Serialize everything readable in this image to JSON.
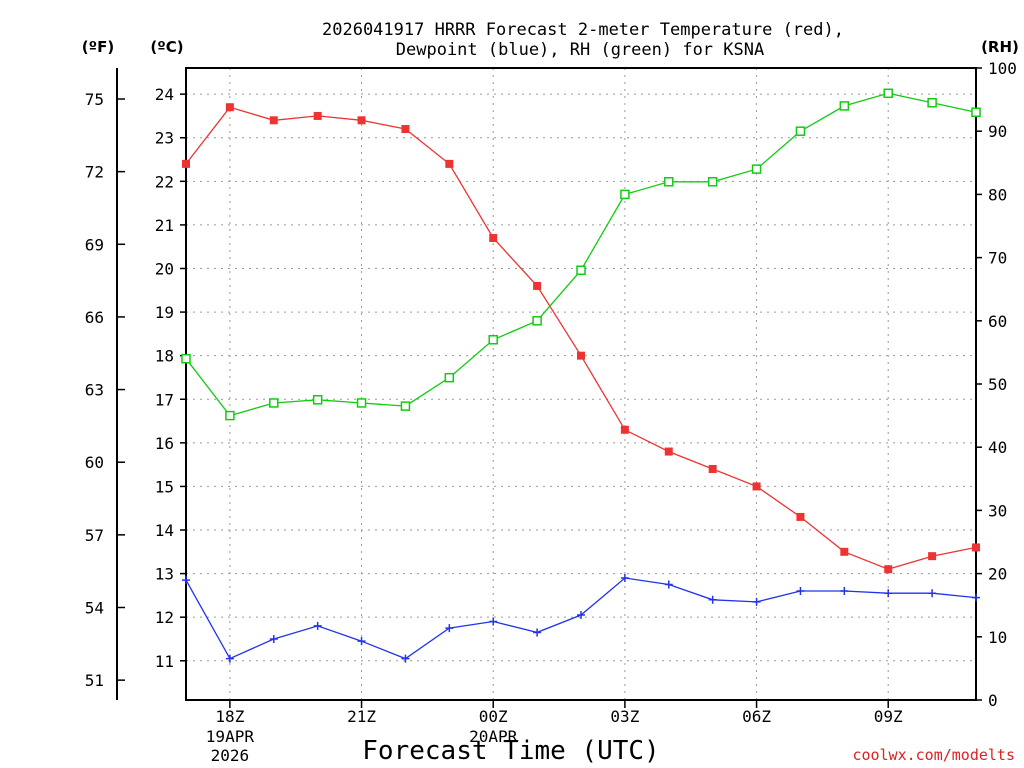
{
  "chart_data": {
    "type": "line",
    "title_line1": "2026041917 HRRR Forecast 2-meter Temperature (red),",
    "title_line2": "Dewpoint (blue), RH (green) for KSNA",
    "xlabel": "Forecast Time (UTC)",
    "credit": "coolwx.com/modelts",
    "units": {
      "fahrenheit": "(ºF)",
      "celsius": "(ºC)",
      "rh": "(RH)"
    },
    "x_hours": [
      17,
      18,
      19,
      20,
      21,
      22,
      23,
      24,
      25,
      26,
      27,
      28,
      29,
      30,
      31,
      32,
      33,
      34,
      35
    ],
    "xlim": [
      17,
      35
    ],
    "x_ticks": [
      {
        "hour": 18,
        "label": "18Z",
        "date": "19APR",
        "year": "2026"
      },
      {
        "hour": 21,
        "label": "21Z"
      },
      {
        "hour": 24,
        "label": "00Z",
        "date": "20APR"
      },
      {
        "hour": 27,
        "label": "03Z"
      },
      {
        "hour": 30,
        "label": "06Z"
      },
      {
        "hour": 33,
        "label": "09Z"
      }
    ],
    "celsius_axis": {
      "ylim": [
        10.1,
        24.6
      ],
      "ticks": [
        11,
        12,
        13,
        14,
        15,
        16,
        17,
        18,
        19,
        20,
        21,
        22,
        23,
        24
      ]
    },
    "fahrenheit_axis": {
      "ticks": [
        51,
        54,
        57,
        60,
        63,
        66,
        69,
        72,
        75
      ]
    },
    "rh_axis": {
      "ylim": [
        0,
        100
      ],
      "ticks": [
        0,
        10,
        20,
        30,
        40,
        50,
        60,
        70,
        80,
        90,
        100
      ]
    },
    "series": [
      {
        "name": "Temperature",
        "units": "°C",
        "color": "#ee3333",
        "marker": "filled-square",
        "values": [
          22.4,
          23.7,
          23.4,
          23.5,
          23.4,
          23.2,
          22.4,
          20.7,
          19.6,
          18.0,
          16.3,
          15.8,
          15.4,
          15.0,
          14.3,
          13.5,
          13.1,
          13.4,
          13.6
        ]
      },
      {
        "name": "Dewpoint",
        "units": "°C",
        "color": "#2233ee",
        "marker": "plus",
        "values": [
          12.85,
          11.05,
          11.5,
          11.8,
          11.45,
          11.05,
          11.75,
          11.9,
          11.65,
          12.05,
          12.9,
          12.75,
          12.4,
          12.35,
          12.6,
          12.6,
          12.55,
          12.55,
          12.45
        ]
      },
      {
        "name": "RH",
        "units": "%",
        "color": "#11cc11",
        "marker": "open-square",
        "values": [
          54,
          45,
          47,
          47.5,
          47,
          46.5,
          51,
          57,
          60,
          68,
          80,
          82,
          82,
          84,
          90,
          94,
          96,
          94.5,
          93
        ]
      }
    ]
  }
}
